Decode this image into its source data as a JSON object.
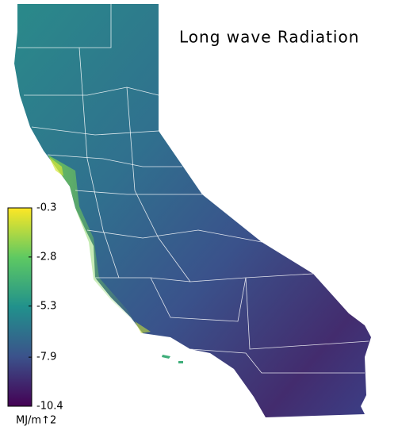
{
  "map": {
    "title": "Long wave Radiation",
    "colorbar": {
      "label": "MJ/m↑2",
      "lim": [
        -10.4,
        -0.3
      ],
      "ticks": [
        -0.3,
        -2.8,
        -5.3,
        -7.9,
        -10.4
      ],
      "colors": [
        "#440154",
        "#3b528b",
        "#21918c",
        "#5ec962",
        "#fde725"
      ]
    }
  }
}
